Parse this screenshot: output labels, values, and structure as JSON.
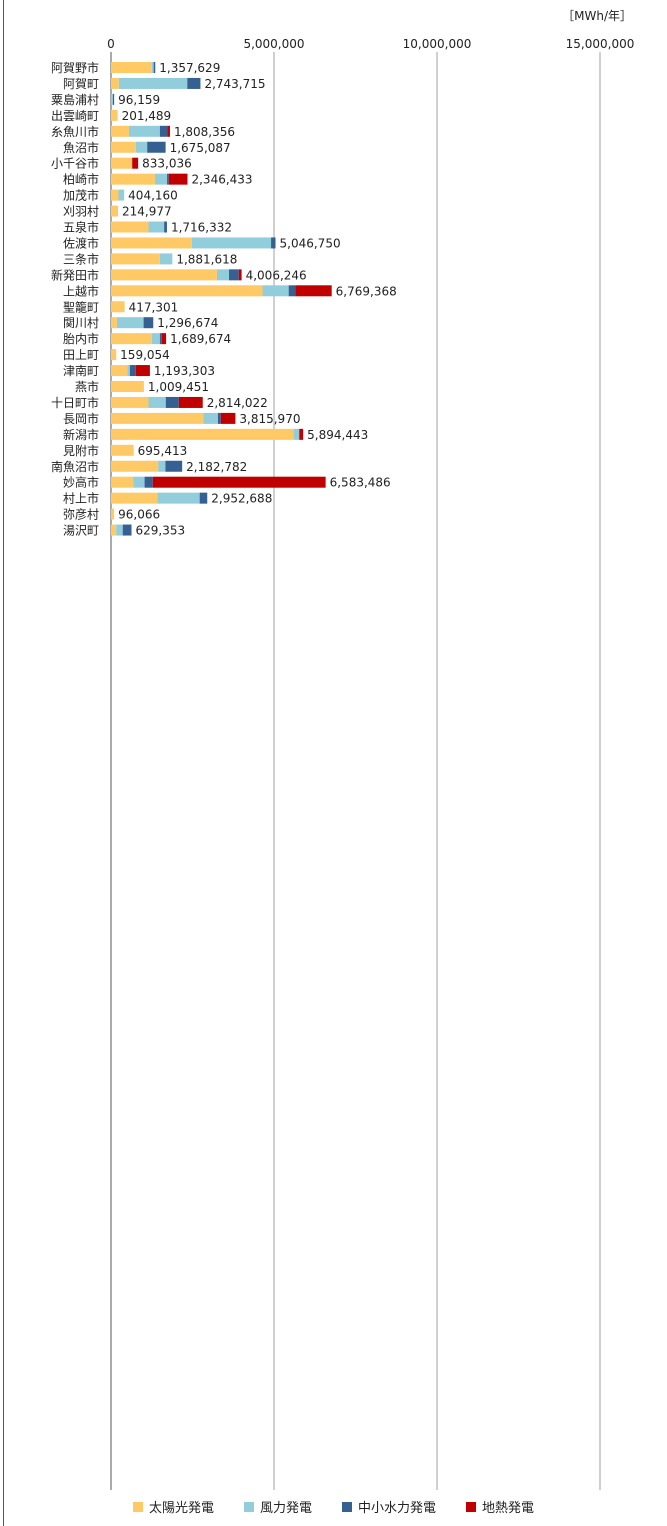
{
  "chart_data": {
    "type": "bar",
    "orientation": "horizontal",
    "stacked": true,
    "unit_label": "［MWh/年］",
    "xlim": [
      0,
      16000000
    ],
    "x_ticks": [
      0,
      5000000,
      10000000,
      15000000
    ],
    "x_tick_labels": [
      "0",
      "5,000,000",
      "10,000,000",
      "15,000,000"
    ],
    "grid": true,
    "legend_position": "bottom",
    "categories": [
      "阿賀野市",
      "阿賀町",
      "粟島浦村",
      "出雲崎町",
      "糸魚川市",
      "魚沼市",
      "小千谷市",
      "柏崎市",
      "加茂市",
      "刈羽村",
      "五泉市",
      "佐渡市",
      "三条市",
      "新発田市",
      "上越市",
      "聖籠町",
      "関川村",
      "胎内市",
      "田上町",
      "津南町",
      "燕市",
      "十日町市",
      "長岡市",
      "新潟市",
      "見附市",
      "南魚沼市",
      "妙高市",
      "村上市",
      "弥彦村",
      "湯沢町"
    ],
    "totals": [
      1357629,
      2743715,
      96159,
      201489,
      1808356,
      1675087,
      833036,
      2346433,
      404160,
      214977,
      1716332,
      5046750,
      1881618,
      4006246,
      6769368,
      417301,
      1296674,
      1689674,
      159054,
      1193303,
      1009451,
      2814022,
      3815970,
      5894443,
      695413,
      2182782,
      6583486,
      2952688,
      96066,
      629353
    ],
    "total_labels": [
      "1,357,629",
      "2,743,715",
      "96,159",
      "201,489",
      "1,808,356",
      "1,675,087",
      "833,036",
      "2,346,433",
      "404,160",
      "214,977",
      "1,716,332",
      "5,046,750",
      "1,881,618",
      "4,006,246",
      "6,769,368",
      "417,301",
      "1,296,674",
      "1,689,674",
      "159,054",
      "1,193,303",
      "1,009,451",
      "2,814,022",
      "3,815,970",
      "5,894,443",
      "695,413",
      "2,182,782",
      "6,583,486",
      "2,952,688",
      "96,066",
      "629,353"
    ],
    "series": [
      {
        "name": "太陽光発電",
        "color": "#FFC966",
        "values": [
          1250000,
          240000,
          0,
          201489,
          550000,
          760000,
          650000,
          1350000,
          230000,
          214977,
          1150000,
          2480000,
          1500000,
          3250000,
          4650000,
          417301,
          180000,
          1250000,
          159054,
          500000,
          1009451,
          1150000,
          2830000,
          5600000,
          695413,
          1450000,
          680000,
          1420000,
          96066,
          160000
        ]
      },
      {
        "name": "風力発電",
        "color": "#92CDDC",
        "values": [
          60000,
          2100000,
          60000,
          0,
          950000,
          350000,
          0,
          370000,
          174160,
          0,
          480000,
          2430000,
          381618,
          370000,
          800000,
          0,
          820000,
          250000,
          0,
          80000,
          0,
          530000,
          450000,
          164443,
          0,
          220000,
          350000,
          1300000,
          0,
          200000
        ]
      },
      {
        "name": "中小水力発電",
        "color": "#366092",
        "values": [
          47629,
          403715,
          36159,
          0,
          230000,
          565087,
          0,
          50000,
          0,
          0,
          86332,
          136750,
          0,
          300000,
          200000,
          0,
          296674,
          60000,
          0,
          180000,
          0,
          400000,
          85970,
          30000,
          0,
          512782,
          250000,
          232688,
          0,
          269353
        ]
      },
      {
        "name": "地熱発電",
        "color": "#C00000",
        "values": [
          0,
          0,
          0,
          0,
          78356,
          0,
          183036,
          576433,
          0,
          0,
          0,
          0,
          0,
          86246,
          1119368,
          0,
          0,
          129674,
          0,
          433303,
          0,
          734022,
          450000,
          100000,
          0,
          0,
          5303486,
          0,
          0,
          0
        ]
      }
    ]
  }
}
